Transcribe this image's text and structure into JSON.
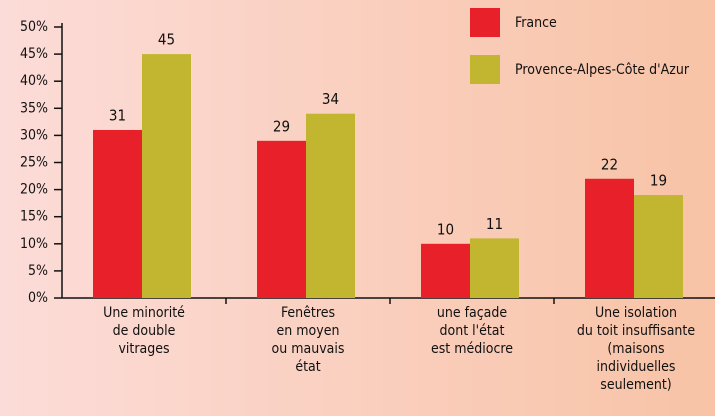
{
  "chart_data": {
    "type": "bar",
    "categories": [
      "Une minorité\nde double\nvitrages",
      "Fenêtres\nen moyen\nou mauvais\nétat",
      "une façade\ndont l'état\nest médiocre",
      "Une isolation\ndu toit insuffisante\n(maisons\nindividuelles\nseulement)"
    ],
    "series": [
      {
        "name": "France",
        "color": "#e8202a",
        "values": [
          31,
          29,
          10,
          22
        ]
      },
      {
        "name": "Provence-Alpes-Côte d'Azur",
        "color": "#c2b630",
        "values": [
          45,
          34,
          11,
          19
        ]
      }
    ],
    "ylim": [
      0,
      50
    ],
    "yticks": [
      {
        "value": 0,
        "label": "0%"
      },
      {
        "value": 5,
        "label": "5%"
      },
      {
        "value": 10,
        "label": "10%"
      },
      {
        "value": 15,
        "label": "15%"
      },
      {
        "value": 20,
        "label": "20%"
      },
      {
        "value": 25,
        "label": "25%"
      },
      {
        "value": 30,
        "label": "30%"
      },
      {
        "value": 35,
        "label": "35%"
      },
      {
        "value": 40,
        "label": "40%"
      },
      {
        "value": 45,
        "label": "45%"
      },
      {
        "value": 50,
        "label": "50%"
      }
    ],
    "legend": "top-right"
  }
}
